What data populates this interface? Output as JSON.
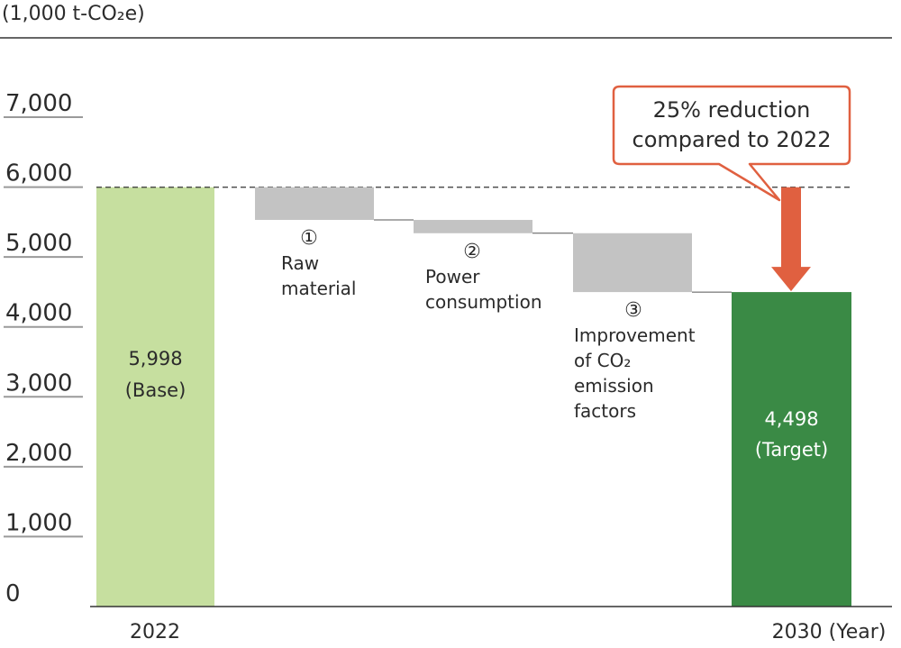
{
  "chart_data": {
    "type": "waterfall",
    "unit_label": "(1,000 t-CO₂e)",
    "ylim": [
      0,
      7000
    ],
    "yticks": [
      "0",
      "1,000",
      "2,000",
      "3,000",
      "4,000",
      "5,000",
      "6,000",
      "7,000"
    ],
    "x_start_label": "2022",
    "x_end_label": "2030 (Year)",
    "base": {
      "value": 5998,
      "label": "5,998",
      "sublabel": "(Base)",
      "color": "#c6df9f"
    },
    "steps": [
      {
        "marker": "①",
        "lines": [
          "Raw",
          "material"
        ],
        "from": 5998,
        "to": 5530
      },
      {
        "marker": "②",
        "lines": [
          "Power",
          "consumption"
        ],
        "from": 5530,
        "to": 5340
      },
      {
        "marker": "③",
        "lines": [
          "Improvement",
          "of CO₂",
          "emission",
          "factors"
        ],
        "from": 5340,
        "to": 4498
      }
    ],
    "step_color": "#c3c3c3",
    "target": {
      "value": 4498,
      "label": "4,498",
      "sublabel": "(Target)",
      "color": "#3a8a45"
    },
    "callout": {
      "lines": [
        "25% reduction",
        "compared to 2022"
      ],
      "color": "#e06040"
    }
  }
}
